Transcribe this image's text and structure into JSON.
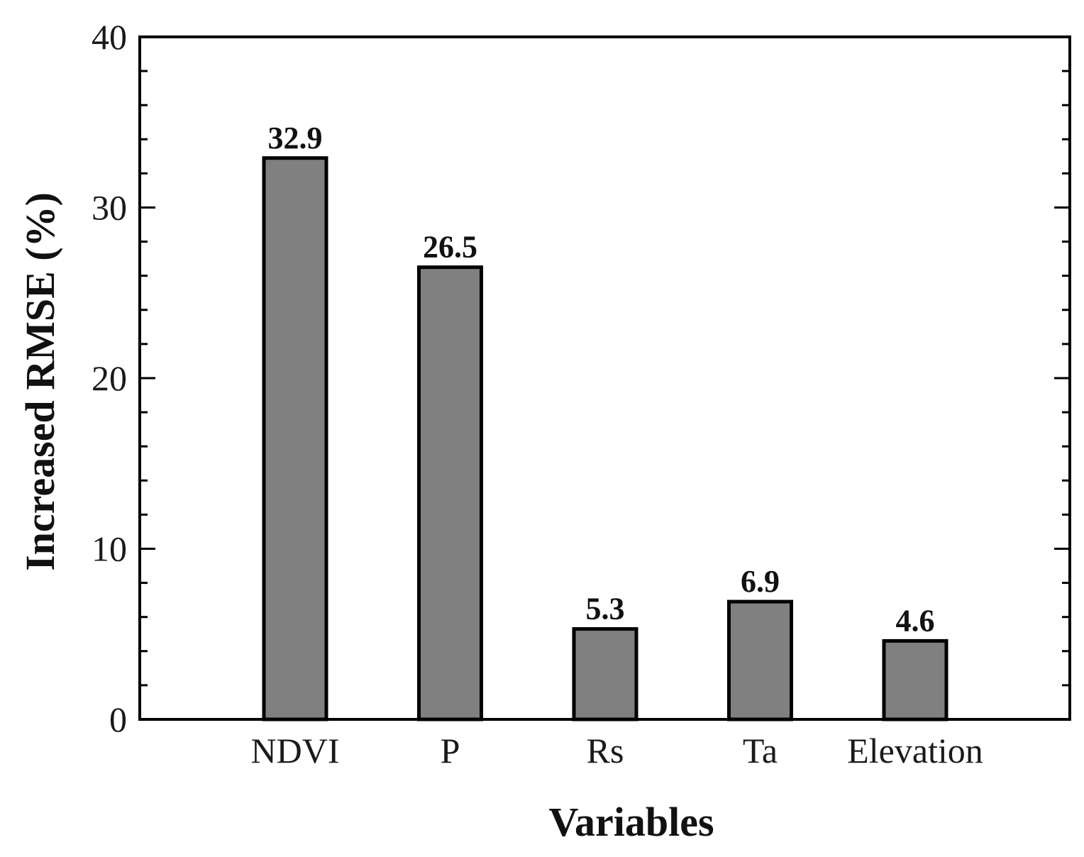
{
  "chart_data": {
    "type": "bar",
    "title": "",
    "xlabel": "Variables",
    "ylabel": "Increased RMSE (%)",
    "categories": [
      "NDVI",
      "P",
      "Rs",
      "Ta",
      "Elevation"
    ],
    "values": [
      32.9,
      26.5,
      5.3,
      6.9,
      4.6
    ],
    "value_labels": [
      "32.9",
      "26.5",
      "5.3",
      "6.9",
      "4.6"
    ],
    "ylim": [
      0,
      40
    ],
    "yticks": [
      0,
      10,
      20,
      30,
      40
    ],
    "ytick_labels": [
      "0",
      "10",
      "20",
      "30",
      "40"
    ],
    "grid": false,
    "bar_color": "#808080",
    "edge_color": "#000000"
  }
}
